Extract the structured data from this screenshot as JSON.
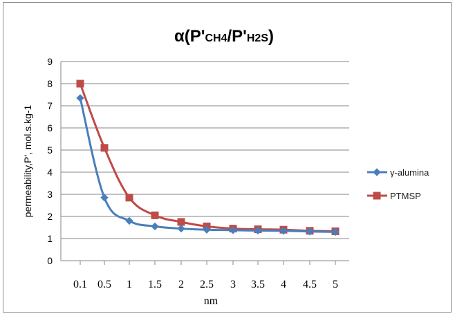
{
  "chart_data": {
    "type": "line",
    "title": {
      "prefix": "α(P'",
      "sub1": "CH4",
      "mid": "/P'",
      "sub2": "H2S",
      "suffix": ")"
    },
    "xlabel": "nm",
    "ylabel": "permeability,P', mol.s.kg-1",
    "categories": [
      "0.1",
      "0.5",
      "1",
      "1.5",
      "2",
      "2.5",
      "3",
      "3.5",
      "4",
      "4.5",
      "5"
    ],
    "ylim": [
      0,
      9
    ],
    "yticks": [
      "0",
      "1",
      "2",
      "3",
      "4",
      "5",
      "6",
      "7",
      "8",
      "9"
    ],
    "grid": true,
    "legend_position": "right",
    "series": [
      {
        "name": "γ-alumina",
        "color": "#4a7ebb",
        "marker": "diamond",
        "values": [
          7.35,
          2.85,
          1.8,
          1.55,
          1.45,
          1.4,
          1.38,
          1.36,
          1.35,
          1.32,
          1.3
        ]
      },
      {
        "name": "PTMSP",
        "color": "#be4b48",
        "marker": "square",
        "values": [
          8.0,
          5.1,
          2.85,
          2.05,
          1.75,
          1.55,
          1.45,
          1.42,
          1.4,
          1.35,
          1.33
        ]
      }
    ]
  }
}
